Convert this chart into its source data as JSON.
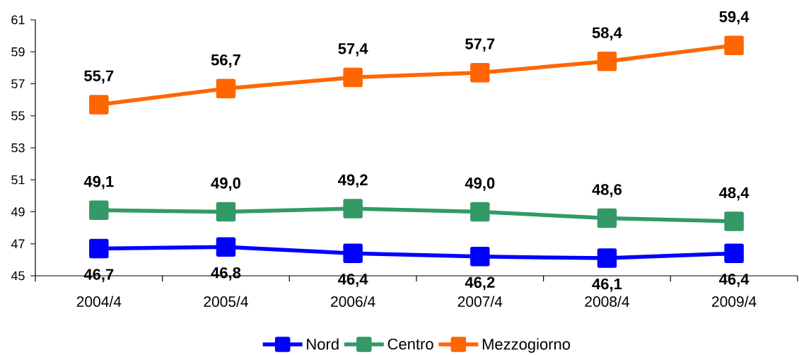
{
  "chart_data": {
    "type": "line",
    "categories": [
      "2004/4",
      "2005/4",
      "2006/4",
      "2007/4",
      "2008/4",
      "2009/4"
    ],
    "series": [
      {
        "name": "Nord",
        "color": "#0000ff",
        "values": [
          46.7,
          46.8,
          46.4,
          46.2,
          46.1,
          46.4
        ],
        "value_labels": [
          "46,7",
          "46,8",
          "46,4",
          "46,2",
          "46,1",
          "46,4"
        ]
      },
      {
        "name": "Centro",
        "color": "#339966",
        "values": [
          49.1,
          49.0,
          49.2,
          49.0,
          48.6,
          48.4
        ],
        "value_labels": [
          "49,1",
          "49,0",
          "49,2",
          "49,0",
          "48,6",
          "48,4"
        ]
      },
      {
        "name": "Mezzogiorno",
        "color": "#ff6600",
        "values": [
          55.7,
          56.7,
          57.4,
          57.7,
          58.4,
          59.4
        ],
        "value_labels": [
          "55,7",
          "56,7",
          "57,4",
          "57,7",
          "58,4",
          "59,4"
        ]
      }
    ],
    "ylim": [
      45,
      61
    ],
    "yticks": [
      45,
      47,
      49,
      51,
      53,
      55,
      57,
      59,
      61
    ],
    "legend": "bottom",
    "marker": "square",
    "line_style": "solid"
  }
}
